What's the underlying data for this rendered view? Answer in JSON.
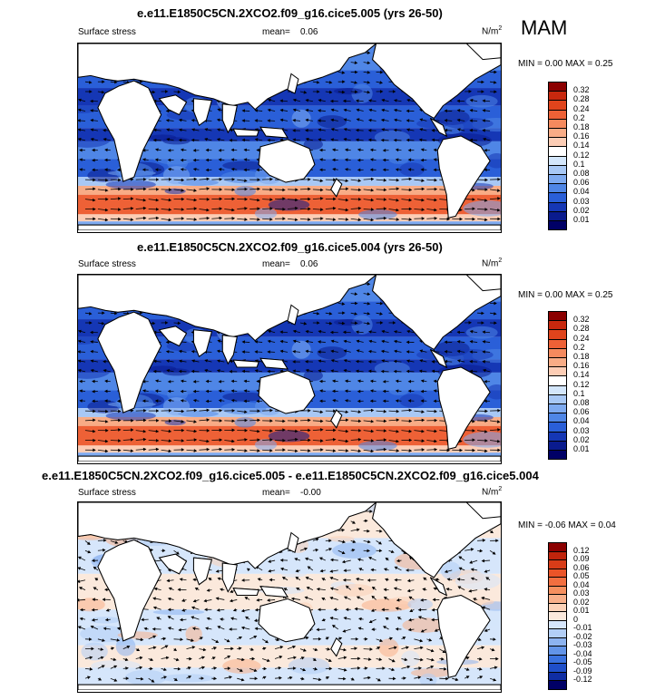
{
  "season": "MAM",
  "panels": [
    {
      "title": "e.e11.E1850C5CN.2XCO2.f09_g16.cice5.005 (yrs 26-50)",
      "left_label": "Surface stress",
      "mean_label": "mean=",
      "mean_value": "0.06",
      "units": "N/m",
      "units_sup": "2",
      "minmax": "MIN =   0.00 MAX =   0.25",
      "type": "absolute"
    },
    {
      "title": "e.e11.E1850C5CN.2XCO2.f09_g16.cice5.004 (yrs 26-50)",
      "left_label": "Surface stress",
      "mean_label": "mean=",
      "mean_value": "0.06",
      "units": "N/m",
      "units_sup": "2",
      "minmax": "MIN =   0.00 MAX =   0.25",
      "type": "absolute"
    },
    {
      "title": "e.e11.E1850C5CN.2XCO2.f09_g16.cice5.005 - e.e11.E1850C5CN.2XCO2.f09_g16.cice5.004",
      "left_label": "Surface stress",
      "mean_label": "mean=",
      "mean_value": "-0.00",
      "units": "N/m",
      "units_sup": "2",
      "minmax": "MIN =  -0.06 MAX =   0.04",
      "type": "difference"
    }
  ],
  "colorbars": {
    "absolute": {
      "labels": [
        "0.32",
        "0.28",
        "0.24",
        "0.2",
        "0.18",
        "0.16",
        "0.14",
        "0.12",
        "0.1",
        "0.08",
        "0.06",
        "0.04",
        "0.03",
        "0.02",
        "0.01"
      ],
      "colors": [
        "#8b0000",
        "#c8280e",
        "#e0441c",
        "#ee6136",
        "#f58a5e",
        "#f8ac86",
        "#fccdb5",
        "#ffffff",
        "#d3e6fb",
        "#a8c8f5",
        "#7eaaf0",
        "#4f86e6",
        "#2a5fd8",
        "#1537b5",
        "#0a1b8e",
        "#000066"
      ]
    },
    "difference": {
      "labels": [
        "0.12",
        "0.09",
        "0.06",
        "0.05",
        "0.04",
        "0.03",
        "0.02",
        "0.01",
        "0",
        "-0.01",
        "-0.02",
        "-0.03",
        "-0.04",
        "-0.05",
        "-0.09",
        "-0.12"
      ],
      "colors": [
        "#8b0000",
        "#c0240c",
        "#d83c18",
        "#ea5428",
        "#f26f40",
        "#f6905f",
        "#f9b08a",
        "#fcd2b8",
        "#fbe9dc",
        "#d6e6fb",
        "#b2cef6",
        "#8cb3f0",
        "#6294e8",
        "#3a72df",
        "#1f4fc9",
        "#0f2da3",
        "#000066"
      ]
    }
  },
  "icons": [
    "wind-vector-arrow"
  ]
}
